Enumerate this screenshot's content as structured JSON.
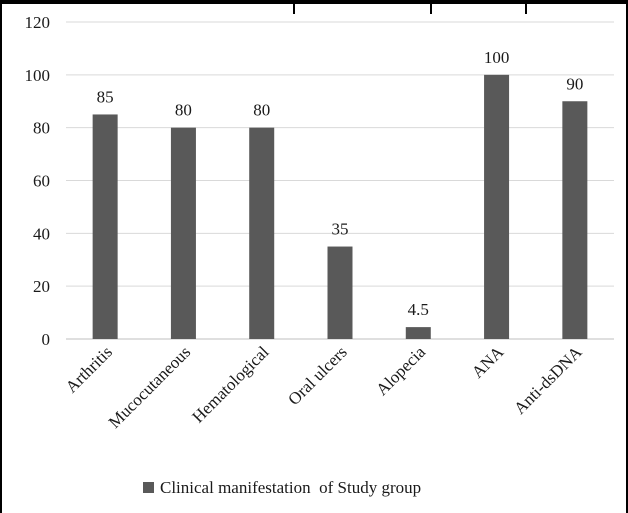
{
  "chart_data": {
    "type": "bar",
    "title": "",
    "xlabel": "",
    "ylabel": "",
    "categories": [
      "Arthritis",
      "Mucocutaneous",
      "Hematological",
      "Oral ulcers",
      "Alopecia",
      "ANA",
      "Anti-dsDNA"
    ],
    "series": [
      {
        "name": "Clinical manifestation  of Study group",
        "values": [
          85,
          80,
          80,
          35,
          4.5,
          100,
          90
        ],
        "data_labels": [
          "85",
          "80",
          "80",
          "35",
          "4.5",
          "100",
          "90"
        ]
      }
    ],
    "ylim": [
      0,
      120
    ],
    "yticks": [
      "0",
      "20",
      "40",
      "60",
      "80",
      "100",
      "120"
    ],
    "grid": true,
    "legend_position": "bottom",
    "colors": {
      "bar": "#595959",
      "grid": "#d9d9d9",
      "axis": "#bfbfbf",
      "text": "#1a1a1a"
    }
  }
}
